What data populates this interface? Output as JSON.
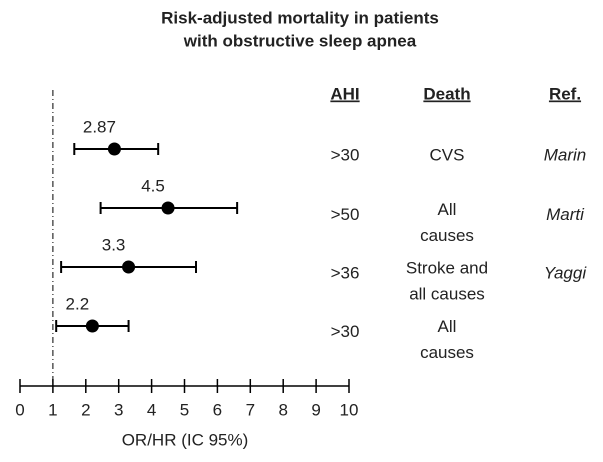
{
  "chart_data": {
    "type": "forest",
    "title": [
      "Risk-adjusted mortality in patients",
      "with obstructive sleep apnea"
    ],
    "xlabel": "OR/HR (IC 95%)",
    "xlim": [
      0,
      10
    ],
    "xticks": [
      0,
      1,
      2,
      3,
      4,
      5,
      6,
      7,
      8,
      9,
      10
    ],
    "reference_line": 1,
    "color": "#000000",
    "estimates": [
      2.87,
      4.5,
      3.3,
      2.2
    ],
    "lower": [
      1.65,
      2.45,
      1.25,
      1.1
    ],
    "upper": [
      4.2,
      6.6,
      5.35,
      3.3
    ],
    "table": {
      "headers": [
        "AHI",
        "Death",
        "Ref."
      ],
      "rows": [
        {
          "ahi": ">30",
          "death": [
            "CVS"
          ],
          "ref": "Marin"
        },
        {
          "ahi": ">50",
          "death": [
            "All",
            "causes"
          ],
          "ref": "Marti"
        },
        {
          "ahi": ">36",
          "death": [
            "Stroke and",
            "all causes"
          ],
          "ref": "Yaggi"
        },
        {
          "ahi": ">30",
          "death": [
            "All",
            "causes"
          ]
        }
      ]
    }
  }
}
